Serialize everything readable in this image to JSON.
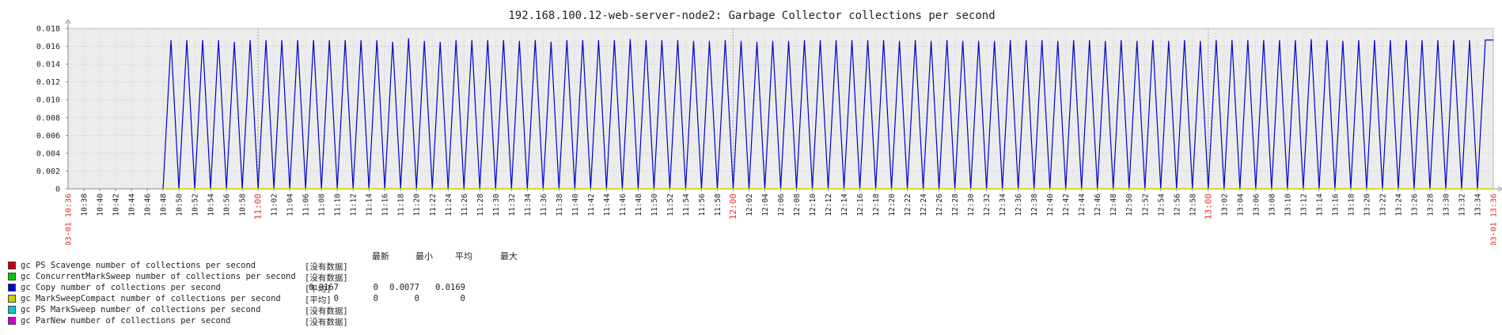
{
  "chart_data": {
    "type": "line",
    "title": "192.168.100.12-web-server-node2: Garbage Collector collections per second",
    "ylim": [
      0,
      0.018
    ],
    "yticks": [
      "0.018",
      "0.016",
      "0.014",
      "0.012",
      "0.010",
      "0.008",
      "0.006",
      "0.004",
      "0.002",
      "0"
    ],
    "xlim_minutes": [
      "10:36",
      "13:36"
    ],
    "x_start_label": "03-01 10:36",
    "x_end_label": "03-01 13:36",
    "x_ticks": [
      "10:38",
      "10:40",
      "10:42",
      "10:44",
      "10:46",
      "10:48",
      "10:50",
      "10:52",
      "10:54",
      "10:56",
      "10:58",
      "11:00",
      "11:02",
      "11:04",
      "11:06",
      "11:08",
      "11:10",
      "11:12",
      "11:14",
      "11:16",
      "11:18",
      "11:20",
      "11:22",
      "11:24",
      "11:26",
      "11:28",
      "11:30",
      "11:32",
      "11:34",
      "11:36",
      "11:38",
      "11:40",
      "11:42",
      "11:44",
      "11:46",
      "11:48",
      "11:50",
      "11:52",
      "11:54",
      "11:56",
      "11:58",
      "12:00",
      "12:02",
      "12:04",
      "12:06",
      "12:08",
      "12:10",
      "12:12",
      "12:14",
      "12:16",
      "12:18",
      "12:20",
      "12:22",
      "12:24",
      "12:26",
      "12:28",
      "12:30",
      "12:32",
      "12:34",
      "12:36",
      "12:38",
      "12:40",
      "12:42",
      "12:44",
      "12:46",
      "12:48",
      "12:50",
      "12:52",
      "12:54",
      "12:56",
      "12:58",
      "13:00",
      "13:02",
      "13:04",
      "13:06",
      "13:08",
      "13:10",
      "13:12",
      "13:14",
      "13:16",
      "13:18",
      "13:20",
      "13:22",
      "13:24",
      "13:26",
      "13:28",
      "13:30",
      "13:32",
      "13:34"
    ],
    "x_major_ticks": [
      "11:00",
      "12:00",
      "13:00"
    ],
    "series": [
      {
        "name": "gc Copy number of collections per second",
        "color": "#0000cc",
        "start_time": "10:48",
        "end_time": "13:36",
        "pattern": "alternating 0 / peak every minute",
        "peaks": [
          0.0167,
          0.0167,
          0.0167,
          0.0167,
          0.0165,
          0.0167,
          0.0167,
          0.0167,
          0.0167,
          0.0167,
          0.0167,
          0.0167,
          0.0167,
          0.0167,
          0.0165,
          0.0169,
          0.0166,
          0.0165,
          0.0167,
          0.0167,
          0.0167,
          0.0167,
          0.0166,
          0.0167,
          0.0165,
          0.0167,
          0.0167,
          0.0167,
          0.0167,
          0.0168,
          0.0167,
          0.0167,
          0.0167,
          0.0166,
          0.0166,
          0.0167,
          0.0166,
          0.0165,
          0.0166,
          0.0166,
          0.0167,
          0.0167,
          0.0167,
          0.0167,
          0.0167,
          0.0167,
          0.0166,
          0.0167,
          0.0166,
          0.0167,
          0.0166,
          0.0166,
          0.0166,
          0.0167,
          0.0167,
          0.0167,
          0.0166,
          0.0167,
          0.0167,
          0.0166,
          0.0167,
          0.0166,
          0.0167,
          0.0166,
          0.0167,
          0.0166,
          0.0167,
          0.0167,
          0.0167,
          0.0167,
          0.0167,
          0.0167,
          0.0168,
          0.0167,
          0.0166,
          0.0167,
          0.0167,
          0.0167,
          0.0167,
          0.0167,
          0.0167,
          0.0167,
          0.0167,
          0.0167
        ]
      },
      {
        "name": "gc MarkSweepCompact number of collections per second",
        "color": "#cccc00",
        "start_time": "10:48",
        "end_time": "13:36",
        "constant": 0
      }
    ]
  },
  "legend": {
    "headers": [
      "最新",
      "最小",
      "平均",
      "最大"
    ],
    "rows": [
      {
        "color": "#cc0000",
        "name": "gc PS Scavenge number of collections per second",
        "fn": "[没有数据]",
        "values": [
          "",
          "",
          "",
          ""
        ]
      },
      {
        "color": "#00cc00",
        "name": "gc ConcurrentMarkSweep number of collections per second",
        "fn": "[没有数据]",
        "values": [
          "",
          "",
          "",
          ""
        ]
      },
      {
        "color": "#0000cc",
        "name": "gc Copy number of collections per second",
        "fn": "[平均]",
        "values": [
          "0.0167",
          "0",
          "0.0077",
          "0.0169"
        ]
      },
      {
        "color": "#cccc00",
        "name": "gc MarkSweepCompact number of collections per second",
        "fn": "[平均]",
        "values": [
          "0",
          "0",
          "0",
          "0"
        ]
      },
      {
        "color": "#00cccc",
        "name": "gc PS MarkSweep number of collections per second",
        "fn": "[没有数据]",
        "values": [
          "",
          "",
          "",
          ""
        ]
      },
      {
        "color": "#cc00cc",
        "name": "gc ParNew number of collections per second",
        "fn": "[没有数据]",
        "values": [
          "",
          "",
          "",
          ""
        ]
      }
    ]
  }
}
